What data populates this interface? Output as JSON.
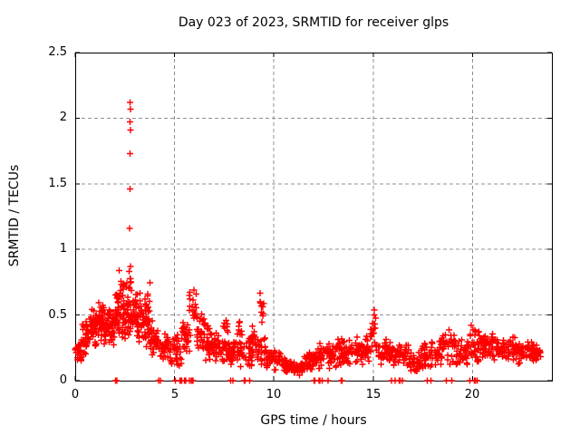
{
  "chart_data": {
    "type": "scatter",
    "title": "Day 023 of 2023, SRMTID for receiver glps",
    "xlabel": "GPS time / hours",
    "ylabel": "SRMTID / TECUs",
    "xlim": [
      0,
      24
    ],
    "ylim": [
      0,
      2.5
    ],
    "xticks": [
      0,
      5,
      10,
      15,
      20
    ],
    "yticks": [
      0,
      0.5,
      1,
      1.5,
      2,
      2.5
    ],
    "grid": true,
    "legend": "none",
    "series_name": "SRMTID",
    "marker": {
      "shape": "plus",
      "color": "#ff0000",
      "size": 7
    },
    "axis_color": "#000000",
    "grid_color": "#909090",
    "background": "#ffffff",
    "seed": 7,
    "outlier_points": [
      [
        2.76,
        2.12
      ],
      [
        2.79,
        2.07
      ],
      [
        2.76,
        1.97
      ],
      [
        2.78,
        1.91
      ],
      [
        2.77,
        1.73
      ],
      [
        2.77,
        1.46
      ],
      [
        2.74,
        1.16
      ],
      [
        2.78,
        0.87
      ],
      [
        2.22,
        0.84
      ]
    ],
    "zero_marker_x": [
      2.02,
      2.1,
      4.2,
      4.3,
      5.05,
      5.28,
      5.31,
      5.34,
      5.37,
      5.5,
      5.53,
      5.56,
      5.75,
      5.85,
      5.88,
      5.91,
      5.94,
      7.82,
      7.95,
      8.5,
      8.55,
      8.78,
      12.02,
      12.06,
      12.28,
      12.32,
      12.44,
      12.72,
      13.4,
      13.44,
      15.92,
      16.1,
      16.32,
      16.36,
      16.48,
      17.72,
      17.9,
      18.68,
      18.95,
      19.88,
      20.1,
      20.14,
      20.24
    ],
    "density_bands": {
      "format": "[x_start_hours, x_end_hours, point_count, y_min_TECUs, y_max_TECUs]",
      "bands": [
        [
          0.0,
          0.35,
          24,
          0.13,
          0.33
        ],
        [
          0.35,
          0.7,
          28,
          0.18,
          0.46
        ],
        [
          0.7,
          1.1,
          42,
          0.24,
          0.56
        ],
        [
          1.1,
          1.5,
          42,
          0.27,
          0.62
        ],
        [
          1.5,
          2.0,
          48,
          0.24,
          0.55
        ],
        [
          2.0,
          2.45,
          46,
          0.3,
          0.7
        ],
        [
          2.15,
          2.45,
          14,
          0.52,
          0.84
        ],
        [
          2.45,
          2.9,
          42,
          0.3,
          0.66
        ],
        [
          2.55,
          2.85,
          10,
          0.58,
          0.87
        ],
        [
          2.9,
          3.3,
          42,
          0.27,
          0.72
        ],
        [
          3.3,
          3.75,
          36,
          0.24,
          0.62
        ],
        [
          3.5,
          3.8,
          9,
          0.52,
          0.77
        ],
        [
          3.75,
          4.2,
          36,
          0.17,
          0.48
        ],
        [
          4.2,
          4.8,
          36,
          0.12,
          0.4
        ],
        [
          4.8,
          5.35,
          32,
          0.08,
          0.42
        ],
        [
          5.35,
          5.8,
          30,
          0.14,
          0.5
        ],
        [
          5.75,
          6.1,
          18,
          0.42,
          0.78
        ],
        [
          6.1,
          6.55,
          30,
          0.2,
          0.58
        ],
        [
          6.55,
          7.0,
          34,
          0.14,
          0.42
        ],
        [
          7.0,
          7.6,
          40,
          0.12,
          0.4
        ],
        [
          7.45,
          7.7,
          8,
          0.35,
          0.5
        ],
        [
          7.6,
          8.3,
          44,
          0.08,
          0.33
        ],
        [
          8.15,
          8.4,
          8,
          0.3,
          0.48
        ],
        [
          8.3,
          9.0,
          44,
          0.1,
          0.35
        ],
        [
          8.9,
          9.1,
          7,
          0.28,
          0.45
        ],
        [
          9.0,
          9.6,
          28,
          0.12,
          0.4
        ],
        [
          9.3,
          9.5,
          10,
          0.4,
          0.72
        ],
        [
          9.6,
          10.4,
          42,
          0.07,
          0.26
        ],
        [
          10.4,
          11.0,
          42,
          0.05,
          0.18
        ],
        [
          11.0,
          11.5,
          36,
          0.04,
          0.15
        ],
        [
          11.5,
          12.2,
          42,
          0.06,
          0.24
        ],
        [
          12.2,
          13.2,
          56,
          0.09,
          0.3
        ],
        [
          13.2,
          14.2,
          56,
          0.1,
          0.33
        ],
        [
          14.2,
          14.85,
          40,
          0.11,
          0.37
        ],
        [
          14.85,
          15.15,
          20,
          0.15,
          0.57
        ],
        [
          15.15,
          16.0,
          46,
          0.1,
          0.34
        ],
        [
          16.0,
          16.8,
          44,
          0.09,
          0.31
        ],
        [
          16.8,
          17.4,
          36,
          0.05,
          0.22
        ],
        [
          17.4,
          18.3,
          46,
          0.08,
          0.31
        ],
        [
          18.3,
          19.15,
          46,
          0.1,
          0.45
        ],
        [
          19.15,
          19.75,
          36,
          0.1,
          0.33
        ],
        [
          19.75,
          20.45,
          42,
          0.11,
          0.45
        ],
        [
          20.45,
          21.3,
          52,
          0.14,
          0.38
        ],
        [
          21.3,
          22.3,
          56,
          0.14,
          0.35
        ],
        [
          22.3,
          23.0,
          42,
          0.12,
          0.31
        ],
        [
          23.0,
          23.45,
          30,
          0.13,
          0.3
        ]
      ]
    }
  }
}
